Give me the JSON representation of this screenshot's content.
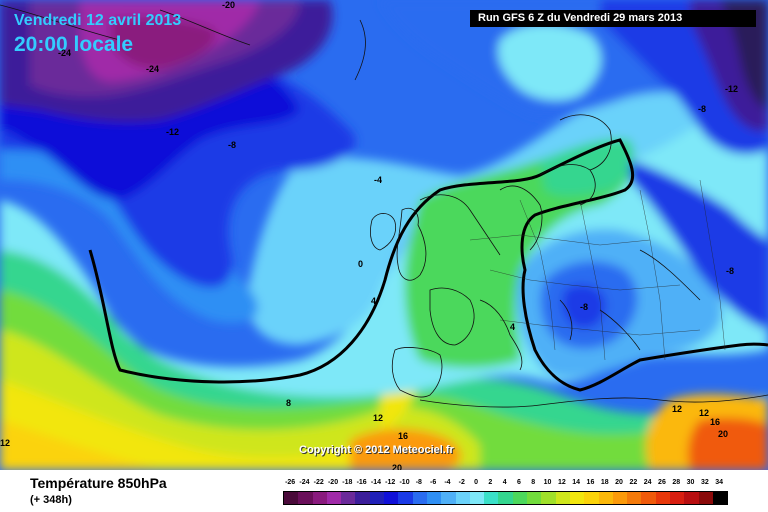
{
  "header": {
    "date_title": "Vendredi 12 avril 2013",
    "time_title": "20:00 locale",
    "run_info": "Run GFS 6 Z du Vendredi 29 mars 2013"
  },
  "watermark": "Copyright © 2012 Meteociel.fr",
  "footer": {
    "parameter": "Température 850hPa",
    "lead_time": "(+ 348h)"
  },
  "isotherm_labels": [
    "-20",
    "-24",
    "-24",
    "-12",
    "-8",
    "-4",
    "0",
    "4",
    "8",
    "12",
    "16",
    "20",
    "12",
    "-12",
    "-8",
    "-8",
    "-8",
    "4",
    "12",
    "16",
    "20",
    "12"
  ],
  "color_scale": {
    "labels": [
      "-26",
      "-24",
      "-22",
      "-20",
      "-18",
      "-16",
      "-14",
      "-12",
      "-10",
      "-8",
      "-6",
      "-4",
      "-2",
      "0",
      "2",
      "4",
      "6",
      "8",
      "10",
      "12",
      "14",
      "16",
      "18",
      "20",
      "22",
      "24",
      "26",
      "28",
      "30",
      "32",
      "34"
    ],
    "colors": [
      "#4a0a3a",
      "#6a0f5a",
      "#8a1a7e",
      "#a02aa8",
      "#6b2a9a",
      "#3c1e9a",
      "#2020b8",
      "#1010d8",
      "#1a3ae6",
      "#2a6cf0",
      "#2f8ff4",
      "#4fb0f7",
      "#6bd2fa",
      "#7ee8f8",
      "#3ae0c8",
      "#34d68f",
      "#4cd85c",
      "#72dc3c",
      "#a0e02a",
      "#cfe61c",
      "#f2e60e",
      "#fbd30a",
      "#fbb80a",
      "#fb9a0a",
      "#f47a0a",
      "#f05a0a",
      "#e8380a",
      "#d81e10",
      "#b80e10",
      "#8a0a0a",
      "#000000"
    ]
  },
  "colors": {
    "title_cyan": "#33ccff",
    "zero_isotherm": "#000000"
  }
}
